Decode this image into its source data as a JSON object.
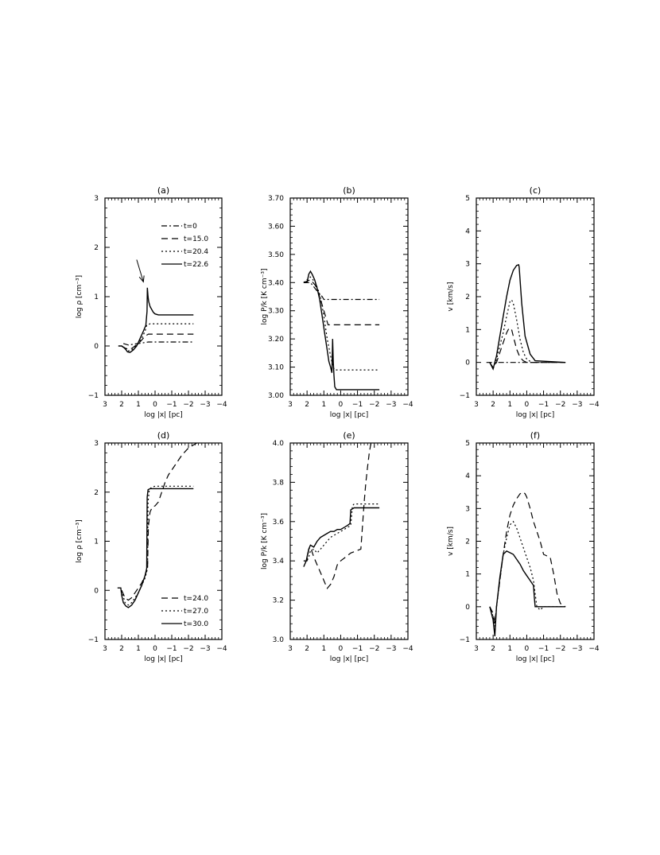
{
  "chart_data": [
    {
      "panel_title": "(a)",
      "type": "line",
      "xlabel": "log |x| [pc]",
      "ylabel": "log ρ [cm⁻³]",
      "xlim": [
        3,
        -4
      ],
      "ylim": [
        -1,
        3
      ],
      "xticks": [
        "3",
        "2",
        "1",
        "0",
        "−1",
        "−2",
        "−3",
        "−4"
      ],
      "yticks": [
        "−1",
        "0",
        "1",
        "2",
        "3"
      ],
      "legend": {
        "placement": "top-right",
        "entries": [
          "t=0",
          "t=15.0",
          "t=20.4",
          "t=22.6"
        ]
      },
      "annotations": [
        {
          "kind": "arrow",
          "from": [
            1.1,
            1.75
          ],
          "to": [
            0.7,
            1.3
          ]
        }
      ],
      "series": [
        {
          "name": "t=0",
          "style": "dashdot",
          "x": [
            1.9,
            1.6,
            1.2,
            0.8,
            0.4,
            0,
            -1,
            -2.3
          ],
          "y": [
            0.05,
            0.02,
            0.04,
            0.06,
            0.08,
            0.08,
            0.08,
            0.08
          ]
        },
        {
          "name": "t=15.0",
          "style": "dashed",
          "x": [
            2.0,
            1.8,
            1.6,
            1.4,
            1.2,
            1.0,
            0.8,
            0.6,
            0.4,
            0,
            -1,
            -2.3
          ],
          "y": [
            0.0,
            -0.04,
            -0.07,
            -0.05,
            0.0,
            0.05,
            0.12,
            0.2,
            0.24,
            0.24,
            0.24,
            0.24
          ]
        },
        {
          "name": "t=20.4",
          "style": "dotted",
          "x": [
            2.0,
            1.8,
            1.6,
            1.4,
            1.2,
            1.0,
            0.8,
            0.6,
            0.5,
            0.3,
            0,
            -1,
            -2.3
          ],
          "y": [
            0.0,
            -0.06,
            -0.1,
            -0.08,
            -0.02,
            0.05,
            0.15,
            0.3,
            0.42,
            0.45,
            0.45,
            0.45,
            0.45
          ]
        },
        {
          "name": "t=22.6",
          "style": "solid",
          "x": [
            2.2,
            2.0,
            1.8,
            1.65,
            1.5,
            1.3,
            1.1,
            0.9,
            0.7,
            0.55,
            0.48,
            0.46,
            0.42,
            0.38,
            0.3,
            0.2,
            0.1,
            0,
            -0.2,
            -1,
            -2.3
          ],
          "y": [
            0.0,
            0.0,
            -0.05,
            -0.12,
            -0.13,
            -0.08,
            0.0,
            0.15,
            0.3,
            0.42,
            0.7,
            1.18,
            1.0,
            0.9,
            0.8,
            0.74,
            0.68,
            0.65,
            0.63,
            0.63,
            0.63
          ]
        }
      ]
    },
    {
      "panel_title": "(b)",
      "type": "line",
      "xlabel": "log |x| [pc]",
      "ylabel": "log P/k [K cm⁻³]",
      "xlim": [
        3,
        -4
      ],
      "ylim": [
        3.0,
        3.7
      ],
      "xticks": [
        "3",
        "2",
        "1",
        "0",
        "−1",
        "−2",
        "−3",
        "−4"
      ],
      "yticks": [
        "3.00",
        "3.10",
        "3.20",
        "3.30",
        "3.40",
        "3.50",
        "3.60",
        "3.70"
      ],
      "series": [
        {
          "name": "t=0",
          "style": "dashdot",
          "x": [
            2.2,
            1.8,
            1.4,
            1.1,
            1.0,
            -1,
            -2.3
          ],
          "y": [
            3.4,
            3.4,
            3.37,
            3.35,
            3.34,
            3.34,
            3.34
          ]
        },
        {
          "name": "t=15.0",
          "style": "dashed",
          "x": [
            2.2,
            1.8,
            1.5,
            1.3,
            1.1,
            0.9,
            0.75,
            -1,
            -2.3
          ],
          "y": [
            3.4,
            3.41,
            3.39,
            3.36,
            3.32,
            3.28,
            3.25,
            3.25,
            3.25
          ]
        },
        {
          "name": "t=20.4",
          "style": "dotted",
          "x": [
            2.2,
            1.8,
            1.5,
            1.2,
            1.0,
            0.8,
            0.6,
            0.45,
            0.35,
            -1,
            -2.3
          ],
          "y": [
            3.4,
            3.42,
            3.4,
            3.35,
            3.28,
            3.2,
            3.14,
            3.1,
            3.09,
            3.09,
            3.09
          ]
        },
        {
          "name": "t=22.6",
          "style": "solid",
          "x": [
            2.2,
            2.0,
            1.9,
            1.8,
            1.7,
            1.55,
            1.4,
            1.25,
            1.1,
            0.95,
            0.8,
            0.7,
            0.6,
            0.52,
            0.48,
            0.44,
            0.4,
            0.35,
            0.25,
            0,
            -1,
            -2.3
          ],
          "y": [
            3.4,
            3.4,
            3.43,
            3.44,
            3.43,
            3.41,
            3.38,
            3.34,
            3.28,
            3.22,
            3.16,
            3.12,
            3.1,
            3.08,
            3.2,
            3.12,
            3.07,
            3.03,
            3.02,
            3.02,
            3.02,
            3.02
          ]
        }
      ]
    },
    {
      "panel_title": "(c)",
      "type": "line",
      "xlabel": "log |x| [pc]",
      "ylabel": "v [km/s]",
      "xlim": [
        3,
        -4
      ],
      "ylim": [
        -1,
        5
      ],
      "xticks": [
        "3",
        "2",
        "1",
        "0",
        "−1",
        "−2",
        "−3",
        "−4"
      ],
      "yticks": [
        "−1",
        "0",
        "1",
        "2",
        "3",
        "4",
        "5"
      ],
      "series": [
        {
          "name": "t=0",
          "style": "dashdot",
          "x": [
            2.4,
            -2.3
          ],
          "y": [
            0,
            0
          ]
        },
        {
          "name": "t=15.0",
          "style": "dashed",
          "x": [
            2.2,
            2.0,
            1.8,
            1.6,
            1.4,
            1.2,
            1.1,
            1.0,
            0.9,
            0.8,
            0.6,
            0.4,
            0.2,
            0,
            -2.3
          ],
          "y": [
            0,
            -0.15,
            0.0,
            0.3,
            0.6,
            0.9,
            1.0,
            1.05,
            1.0,
            0.8,
            0.4,
            0.15,
            0.05,
            0,
            0
          ]
        },
        {
          "name": "t=20.4",
          "style": "dotted",
          "x": [
            2.2,
            2.0,
            1.8,
            1.6,
            1.4,
            1.2,
            1.0,
            0.9,
            0.8,
            0.6,
            0.4,
            0.2,
            0,
            -0.3,
            -2.3
          ],
          "y": [
            0,
            -0.2,
            0.1,
            0.5,
            0.9,
            1.4,
            1.85,
            1.9,
            1.8,
            1.3,
            0.7,
            0.3,
            0.1,
            0,
            0
          ]
        },
        {
          "name": "t=22.6",
          "style": "solid",
          "x": [
            2.2,
            2.0,
            1.8,
            1.6,
            1.4,
            1.2,
            1.0,
            0.8,
            0.6,
            0.48,
            0.45,
            0.3,
            0.1,
            -0.2,
            -0.5,
            -2.3
          ],
          "y": [
            0,
            -0.2,
            0.2,
            0.8,
            1.4,
            2.0,
            2.5,
            2.8,
            2.95,
            2.97,
            2.9,
            1.8,
            0.8,
            0.25,
            0.05,
            0
          ]
        }
      ]
    },
    {
      "panel_title": "(d)",
      "type": "line",
      "xlabel": "log |x| [pc]",
      "ylabel": "log ρ [cm⁻³]",
      "xlim": [
        3,
        -4
      ],
      "ylim": [
        -1,
        3
      ],
      "xticks": [
        "3",
        "2",
        "1",
        "0",
        "−1",
        "−2",
        "−3",
        "−4"
      ],
      "yticks": [
        "−1",
        "0",
        "1",
        "2",
        "3"
      ],
      "legend": {
        "placement": "bottom-right",
        "entries": [
          "t=24.0",
          "t=27.0",
          "t=30.0"
        ]
      },
      "series": [
        {
          "name": "t=24.0",
          "style": "dashed",
          "x": [
            2.0,
            1.8,
            1.6,
            1.4,
            1.2,
            1.0,
            0.8,
            0.6,
            0.45,
            0.4,
            0.3,
            0.15,
            0,
            -0.2,
            -0.4,
            -0.6,
            -0.8,
            -1.0,
            -1.3,
            -1.6,
            -2.0,
            -2.5
          ],
          "y": [
            0.0,
            -0.15,
            -0.2,
            -0.15,
            -0.05,
            0.05,
            0.15,
            0.3,
            0.45,
            1.3,
            1.6,
            1.7,
            1.72,
            1.8,
            2.0,
            2.2,
            2.35,
            2.45,
            2.6,
            2.75,
            2.9,
            3.0
          ]
        },
        {
          "name": "t=27.0",
          "style": "dotted",
          "x": [
            2.0,
            1.8,
            1.6,
            1.4,
            1.2,
            1.0,
            0.8,
            0.6,
            0.45,
            0.42,
            0.35,
            0.2,
            0,
            -1,
            -2.3
          ],
          "y": [
            0.0,
            -0.25,
            -0.3,
            -0.25,
            -0.15,
            -0.05,
            0.1,
            0.25,
            0.45,
            1.8,
            2.05,
            2.1,
            2.12,
            2.12,
            2.12
          ]
        },
        {
          "name": "t=30.0",
          "style": "solid",
          "x": [
            2.25,
            2.05,
            2.0,
            1.9,
            1.75,
            1.6,
            1.4,
            1.2,
            1.0,
            0.8,
            0.6,
            0.5,
            0.47,
            0.42,
            0.3,
            0,
            -1,
            -2.3
          ],
          "y": [
            0.05,
            0.05,
            -0.1,
            -0.25,
            -0.32,
            -0.35,
            -0.3,
            -0.2,
            -0.05,
            0.1,
            0.3,
            0.45,
            1.9,
            2.05,
            2.07,
            2.07,
            2.07,
            2.07
          ]
        }
      ]
    },
    {
      "panel_title": "(e)",
      "type": "line",
      "xlabel": "log |x| [pc]",
      "ylabel": "log P/k [K cm⁻³]",
      "xlim": [
        3,
        -4
      ],
      "ylim": [
        3.0,
        4.0
      ],
      "xticks": [
        "3",
        "2",
        "1",
        "0",
        "−1",
        "−2",
        "−3",
        "−4"
      ],
      "yticks": [
        "3.0",
        "3.2",
        "3.4",
        "3.6",
        "3.8",
        "4.0"
      ],
      "series": [
        {
          "name": "t=24.0",
          "style": "dashed",
          "x": [
            2.2,
            2.0,
            1.9,
            1.8,
            1.6,
            1.4,
            1.2,
            1.0,
            0.8,
            0.6,
            0.4,
            0.3,
            0.2,
            0,
            -0.3,
            -0.6,
            -0.9,
            -1.2,
            -1.4,
            -1.5,
            -1.6,
            -1.7,
            -1.8
          ],
          "y": [
            3.4,
            3.4,
            3.46,
            3.47,
            3.42,
            3.38,
            3.34,
            3.3,
            3.26,
            3.28,
            3.32,
            3.35,
            3.38,
            3.4,
            3.42,
            3.44,
            3.45,
            3.46,
            3.7,
            3.8,
            3.88,
            3.95,
            4.0
          ]
        },
        {
          "name": "t=27.0",
          "style": "dotted",
          "x": [
            2.2,
            2.0,
            1.9,
            1.8,
            1.6,
            1.4,
            1.2,
            1.0,
            0.8,
            0.6,
            0.4,
            0.2,
            0,
            -0.2,
            -0.4,
            -0.6,
            -0.7,
            -0.8,
            -1.0,
            -2.3
          ],
          "y": [
            3.4,
            3.4,
            3.42,
            3.45,
            3.46,
            3.44,
            3.46,
            3.48,
            3.5,
            3.52,
            3.53,
            3.54,
            3.55,
            3.56,
            3.57,
            3.58,
            3.68,
            3.69,
            3.69,
            3.69
          ]
        },
        {
          "name": "t=30.0",
          "style": "solid",
          "x": [
            2.2,
            2.05,
            2.0,
            1.9,
            1.8,
            1.6,
            1.4,
            1.2,
            1.0,
            0.8,
            0.6,
            0.4,
            0.2,
            0,
            -0.2,
            -0.4,
            -0.55,
            -0.6,
            -0.8,
            -1.0,
            -2.3
          ],
          "y": [
            3.37,
            3.4,
            3.42,
            3.46,
            3.48,
            3.47,
            3.5,
            3.52,
            3.53,
            3.54,
            3.55,
            3.55,
            3.56,
            3.56,
            3.57,
            3.58,
            3.59,
            3.66,
            3.67,
            3.67,
            3.67
          ]
        }
      ]
    },
    {
      "panel_title": "(f)",
      "type": "line",
      "xlabel": "log |x| [pc]",
      "ylabel": "v [km/s]",
      "xlim": [
        3,
        -4
      ],
      "ylim": [
        -1,
        5
      ],
      "xticks": [
        "3",
        "2",
        "1",
        "0",
        "−1",
        "−2",
        "−3",
        "−4"
      ],
      "yticks": [
        "−1",
        "0",
        "1",
        "2",
        "3",
        "4",
        "5"
      ],
      "series": [
        {
          "name": "t=24.0",
          "style": "dashed",
          "x": [
            2.2,
            2.0,
            1.9,
            1.8,
            1.6,
            1.4,
            1.2,
            1.0,
            0.8,
            0.6,
            0.4,
            0.2,
            0.1,
            0,
            -0.2,
            -0.4,
            -0.6,
            -0.8,
            -1.0,
            -1.2,
            -1.4,
            -1.6,
            -1.8,
            -2.0,
            -2.3
          ],
          "y": [
            0,
            -0.2,
            -0.5,
            0.0,
            0.8,
            1.6,
            2.3,
            2.8,
            3.1,
            3.3,
            3.45,
            3.5,
            3.45,
            3.35,
            3.0,
            2.6,
            2.3,
            2.0,
            1.6,
            1.55,
            1.5,
            1.0,
            0.4,
            0.1,
            0
          ]
        },
        {
          "name": "t=27.0",
          "style": "dotted",
          "x": [
            2.2,
            2.0,
            1.9,
            1.8,
            1.6,
            1.4,
            1.2,
            1.0,
            0.8,
            0.6,
            0.4,
            0.2,
            0,
            -0.2,
            -0.4,
            -0.6,
            -0.8,
            -1.0,
            -2.3
          ],
          "y": [
            0,
            -0.3,
            -0.6,
            0.0,
            0.8,
            1.6,
            2.1,
            2.5,
            2.6,
            2.4,
            2.1,
            1.8,
            1.5,
            1.2,
            0.8,
            0.0,
            -0.1,
            0,
            0
          ]
        },
        {
          "name": "t=30.0",
          "style": "solid",
          "x": [
            2.2,
            2.0,
            1.9,
            1.8,
            1.6,
            1.4,
            1.2,
            1.0,
            0.8,
            0.6,
            0.4,
            0.2,
            0,
            -0.2,
            -0.4,
            -0.45,
            -0.5,
            -1.0,
            -2.3
          ],
          "y": [
            0,
            -0.4,
            -0.9,
            0.0,
            0.9,
            1.6,
            1.7,
            1.65,
            1.6,
            1.45,
            1.3,
            1.1,
            0.95,
            0.8,
            0.65,
            0.3,
            0,
            0,
            0
          ]
        }
      ]
    }
  ]
}
